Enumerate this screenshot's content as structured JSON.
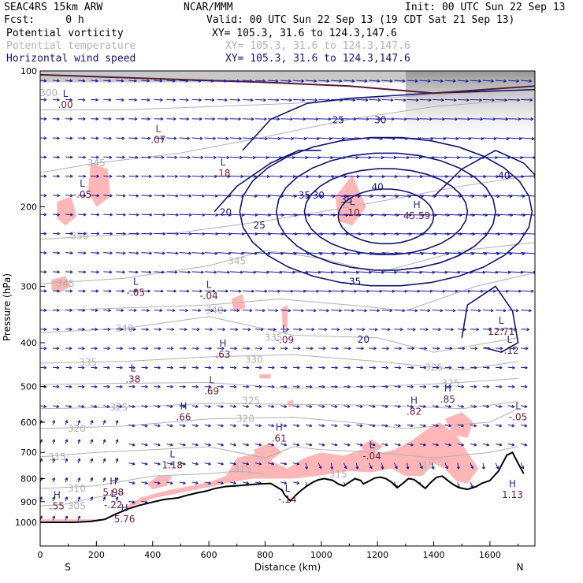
{
  "header": {
    "model": "SEAC4RS 15km ARW",
    "center": "NCAR/MMM",
    "init": "Init: 00 UTC Sun 22 Sep 13",
    "fcst": "Fcst:     0 h",
    "valid": "Valid: 00 UTC Sun 22 Sep 13 (19 CDT Sat 21 Sep 13)",
    "fields": [
      {
        "name": "Potential vorticity",
        "xy": "XY= 105.3, 31.6 to 124.3,147.6"
      },
      {
        "name": "Potential temperature",
        "xy": "XY= 105.3, 31.6 to 124.3,147.6"
      },
      {
        "name": "Horizontal wind speed",
        "xy": "XY= 105.3, 31.6 to 124.3,147.6"
      }
    ]
  },
  "colors": {
    "pv_fill": "#ffb6b6",
    "theta": "#b0b0b0",
    "wind_speed": "#14146e",
    "terrain": "#000000",
    "vectors": "#1a1aa0",
    "extremum_label": "#6b1a3a",
    "extremum_value_pv": "#2a2a8a"
  },
  "chart_data": {
    "type": "cross-section",
    "xlabel": "Distance (km)",
    "ylabel": "Pressure (hPa)",
    "xlim": [
      0,
      1760
    ],
    "ylim": [
      1000,
      100
    ],
    "yscale": "log",
    "x_ticks": [
      0,
      200,
      400,
      600,
      800,
      1000,
      1200,
      1400,
      1600
    ],
    "y_ticks": [
      100,
      200,
      300,
      400,
      500,
      600,
      700,
      800,
      900,
      1000
    ],
    "x_end_labels": {
      "left": "S",
      "right": "N"
    },
    "theta_contours": [
      {
        "value": "300",
        "x": 30,
        "p": 112
      },
      {
        "value": "345",
        "x": 200,
        "p": 160
      },
      {
        "value": "350",
        "x": 140,
        "p": 232
      },
      {
        "value": "345",
        "x": 90,
        "p": 296
      },
      {
        "value": "345",
        "x": 700,
        "p": 264
      },
      {
        "value": "340",
        "x": 620,
        "p": 339
      },
      {
        "value": "340",
        "x": 300,
        "p": 372
      },
      {
        "value": "335",
        "x": 830,
        "p": 390
      },
      {
        "value": "335",
        "x": 170,
        "p": 442
      },
      {
        "value": "330",
        "x": 760,
        "p": 436
      },
      {
        "value": "325",
        "x": 1400,
        "p": 454
      },
      {
        "value": "325",
        "x": 1460,
        "p": 492
      },
      {
        "value": "325",
        "x": 750,
        "p": 538
      },
      {
        "value": "325",
        "x": 280,
        "p": 556
      },
      {
        "value": "320",
        "x": 730,
        "p": 589
      },
      {
        "value": "320",
        "x": 130,
        "p": 620
      },
      {
        "value": "315",
        "x": 60,
        "p": 716
      },
      {
        "value": "315",
        "x": 720,
        "p": 762
      },
      {
        "value": "315",
        "x": 1060,
        "p": 782
      },
      {
        "value": "315",
        "x": 1370,
        "p": 748
      },
      {
        "value": "310",
        "x": 130,
        "p": 842
      },
      {
        "value": "305",
        "x": 130,
        "p": 920
      }
    ],
    "wind_speed_contours": [
      {
        "value": "25",
        "x": 1060,
        "p": 128
      },
      {
        "value": "30",
        "x": 1210,
        "p": 128
      },
      {
        "value": "30",
        "x": 990,
        "p": 188
      },
      {
        "value": "35",
        "x": 940,
        "p": 188
      },
      {
        "value": "35",
        "x": 1090,
        "p": 192
      },
      {
        "value": "40",
        "x": 1200,
        "p": 180
      },
      {
        "value": "20",
        "x": 660,
        "p": 205
      },
      {
        "value": "25",
        "x": 780,
        "p": 219
      },
      {
        "value": "35",
        "x": 1120,
        "p": 292
      },
      {
        "value": "20",
        "x": 1150,
        "p": 392
      },
      {
        "value": "40",
        "x": 1650,
        "p": 170
      }
    ],
    "extrema": [
      {
        "type": "L",
        "value": ".00",
        "x": 90,
        "p": 117
      },
      {
        "type": "L",
        "value": ".07",
        "x": 420,
        "p": 140
      },
      {
        "type": "L",
        "value": ".18",
        "x": 650,
        "p": 166
      },
      {
        "type": "L",
        "value": "-.05",
        "x": 150,
        "p": 185
      },
      {
        "type": "L",
        "value": ".10",
        "x": 1110,
        "p": 203
      },
      {
        "type": "H",
        "value": "45.59",
        "x": 1340,
        "p": 206
      },
      {
        "type": "L",
        "value": "-.05",
        "x": 340,
        "p": 305
      },
      {
        "type": "L",
        "value": "-.04",
        "x": 600,
        "p": 310
      },
      {
        "type": "L",
        "value": "-.09",
        "x": 870,
        "p": 388
      },
      {
        "type": "H",
        "value": ".63",
        "x": 650,
        "p": 418
      },
      {
        "type": "L",
        "value": "12.71",
        "x": 1640,
        "p": 372
      },
      {
        "type": "L",
        "value": "-.12",
        "x": 1670,
        "p": 410
      },
      {
        "type": "L",
        "value": ".38",
        "x": 330,
        "p": 475
      },
      {
        "type": "L",
        "value": ".69",
        "x": 610,
        "p": 504
      },
      {
        "type": "H",
        "value": ".85",
        "x": 1450,
        "p": 526
      },
      {
        "type": "H",
        "value": ".82",
        "x": 1330,
        "p": 560
      },
      {
        "type": "H",
        "value": ".66",
        "x": 510,
        "p": 575
      },
      {
        "type": "L",
        "value": "-.05",
        "x": 1700,
        "p": 575
      },
      {
        "type": "H",
        "value": ".61",
        "x": 850,
        "p": 641
      },
      {
        "type": "L",
        "value": "-.04",
        "x": 1180,
        "p": 702
      },
      {
        "type": "L",
        "value": "1.18",
        "x": 470,
        "p": 736
      },
      {
        "type": "H",
        "value": "5.98",
        "x": 260,
        "p": 845
      },
      {
        "type": "H",
        "value": "1.13",
        "x": 1680,
        "p": 855
      },
      {
        "type": "L",
        "value": "-.14",
        "x": 880,
        "p": 876
      },
      {
        "type": "H",
        "value": ".55",
        "x": 60,
        "p": 906
      },
      {
        "type": "L",
        "value": "-.22",
        "x": 260,
        "p": 900
      },
      {
        "type": "H",
        "value": "5.76",
        "x": 300,
        "p": 968
      }
    ],
    "terrain_surface": [
      [
        0,
        1000
      ],
      [
        120,
        1000
      ],
      [
        180,
        995
      ],
      [
        230,
        985
      ],
      [
        270,
        958
      ],
      [
        310,
        935
      ],
      [
        350,
        918
      ],
      [
        400,
        902
      ],
      [
        440,
        890
      ],
      [
        490,
        883
      ],
      [
        520,
        872
      ],
      [
        560,
        860
      ],
      [
        590,
        853
      ],
      [
        620,
        842
      ],
      [
        660,
        833
      ],
      [
        700,
        830
      ],
      [
        740,
        826
      ],
      [
        780,
        822
      ],
      [
        820,
        820
      ],
      [
        840,
        834
      ],
      [
        860,
        848
      ],
      [
        870,
        870
      ],
      [
        880,
        883
      ],
      [
        890,
        896
      ],
      [
        910,
        870
      ],
      [
        930,
        848
      ],
      [
        950,
        830
      ],
      [
        970,
        815
      ],
      [
        990,
        805
      ],
      [
        1010,
        800
      ],
      [
        1040,
        807
      ],
      [
        1060,
        822
      ],
      [
        1080,
        831
      ],
      [
        1100,
        815
      ],
      [
        1120,
        800
      ],
      [
        1140,
        808
      ],
      [
        1150,
        822
      ],
      [
        1170,
        810
      ],
      [
        1190,
        798
      ],
      [
        1210,
        794
      ],
      [
        1230,
        800
      ],
      [
        1250,
        815
      ],
      [
        1270,
        838
      ],
      [
        1290,
        820
      ],
      [
        1310,
        800
      ],
      [
        1330,
        804
      ],
      [
        1350,
        822
      ],
      [
        1370,
        841
      ],
      [
        1390,
        815
      ],
      [
        1410,
        795
      ],
      [
        1430,
        790
      ],
      [
        1450,
        808
      ],
      [
        1470,
        825
      ],
      [
        1490,
        838
      ],
      [
        1520,
        845
      ],
      [
        1550,
        834
      ],
      [
        1570,
        820
      ],
      [
        1600,
        808
      ],
      [
        1630,
        770
      ],
      [
        1660,
        710
      ],
      [
        1680,
        700
      ],
      [
        1700,
        740
      ],
      [
        1710,
        760
      ],
      [
        1720,
        780
      ]
    ],
    "wind_vectors": "arrow field of horizontal wind on a regular grid"
  }
}
